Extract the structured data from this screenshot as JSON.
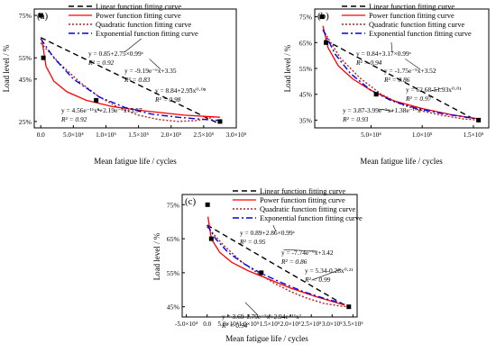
{
  "colors": {
    "linear": "#000000",
    "power": "#ff0000",
    "quadratic": "#b22222",
    "exponential": "#0000ee",
    "points": "#000000",
    "axes": "#000000"
  },
  "chart_data": [
    {
      "panel_label": "(a)",
      "type": "line",
      "xlabel": "Mean fatigue life / cycles",
      "ylabel": "Load level / %",
      "xlim": [
        -10000,
        300000
      ],
      "ylim": [
        22,
        78
      ],
      "xticks": [
        0,
        50000,
        100000,
        150000,
        200000,
        250000,
        300000
      ],
      "xtick_labels": [
        "0.0",
        "5.0×10⁴",
        "1.0×10⁵",
        "1.5×10⁵",
        "2.0×10⁵",
        "2.5×10⁵",
        "3.0×10⁵"
      ],
      "yticks": [
        25,
        45,
        55,
        75
      ],
      "ytick_labels": [
        "25%",
        "45%",
        "55%",
        "75%"
      ],
      "legend_position": "top-right",
      "points": [
        {
          "x": 200,
          "y": 75
        },
        {
          "x": 4000,
          "y": 55
        },
        {
          "x": 85000,
          "y": 35
        },
        {
          "x": 275000,
          "y": 25
        }
      ],
      "series": [
        {
          "name": "Linear function fitting curve",
          "key": "linear",
          "x": [
            0,
            270000
          ],
          "y": [
            64.5,
            24.5
          ]
        },
        {
          "name": "Power function fitting curve",
          "key": "power",
          "x": [
            2000,
            8000,
            20000,
            40000,
            70000,
            110000,
            160000,
            220000,
            275000
          ],
          "y": [
            63,
            51,
            44,
            39,
            35,
            32,
            30,
            28,
            27
          ]
        },
        {
          "name": "Quadratic function fitting curve",
          "key": "quadratic",
          "x": [
            0,
            30000,
            60000,
            90000,
            120000,
            150000,
            180000,
            210000,
            240000,
            265000
          ],
          "y": [
            62,
            52,
            43.5,
            36.5,
            31.5,
            28,
            26,
            25,
            25.5,
            27
          ]
        },
        {
          "name": "Exponential function fitting curve",
          "key": "exponential",
          "x": [
            0,
            20000,
            50000,
            90000,
            130000,
            170000,
            210000,
            250000,
            275000
          ],
          "y": [
            64,
            55,
            45,
            36.5,
            31.5,
            28.5,
            27,
            26,
            25.5
          ]
        }
      ],
      "annotations": [
        {
          "line1": "y = 0.85+2.75×0.99ˣ",
          "line2": "R² = 0.92"
        },
        {
          "line1": "y = -9.19e⁻⁶x+3.35",
          "line2": "R² = 0.83"
        },
        {
          "line1": "y = 8.84+2.93x⁰·⁰⁸",
          "line2": "R² = 0.98"
        },
        {
          "line1": "y = 4.56e⁻¹¹x²+2.19e⁻⁵x+3.57",
          "line2": "R² = 0.92"
        }
      ]
    },
    {
      "panel_label": "(b)",
      "type": "line",
      "xlabel": "Mean fatigue life / cycles",
      "ylabel": "Load level / %",
      "xlim": [
        -5000,
        165000
      ],
      "ylim": [
        32,
        78
      ],
      "xticks": [
        50000,
        100000,
        150000
      ],
      "xtick_labels": [
        "5.0×10⁴",
        "1.0×10⁵",
        "1.5×10⁵"
      ],
      "yticks": [
        35,
        45,
        55,
        65,
        75
      ],
      "ytick_labels": [
        "35%",
        "45%",
        "55%",
        "65%",
        "75%"
      ],
      "legend_position": "top-right",
      "points": [
        {
          "x": 2000,
          "y": 75
        },
        {
          "x": 6000,
          "y": 65
        },
        {
          "x": 55000,
          "y": 45
        },
        {
          "x": 155000,
          "y": 35
        }
      ],
      "series": [
        {
          "name": "Linear function fitting curve",
          "key": "linear",
          "x": [
            5000,
            150000
          ],
          "y": [
            66,
            35.5
          ]
        },
        {
          "name": "Power function fitting curve",
          "key": "power",
          "x": [
            3000,
            8000,
            18000,
            32000,
            50000,
            72000,
            100000,
            130000,
            155000
          ],
          "y": [
            71.5,
            63,
            56,
            51,
            46.5,
            42.5,
            39.5,
            37,
            35.5
          ]
        },
        {
          "name": "Quadratic function fitting curve",
          "key": "quadratic",
          "x": [
            3000,
            20000,
            40000,
            60000,
            80000,
            100000,
            120000,
            140000,
            155000
          ],
          "y": [
            70,
            59,
            51,
            45,
            41,
            38.5,
            36.8,
            35.5,
            35
          ]
        },
        {
          "name": "Exponential function fitting curve",
          "key": "exponential",
          "x": [
            3000,
            15000,
            30000,
            50000,
            70000,
            95000,
            120000,
            145000,
            155000
          ],
          "y": [
            70,
            60.5,
            53,
            46.5,
            42.5,
            39.5,
            37.5,
            36,
            35.5
          ]
        }
      ],
      "annotations": [
        {
          "line1": "y = 0.84+3.17×0.99ˣ",
          "line2": "R² = 0.94"
        },
        {
          "line1": "y = -1.75e⁻⁵x+3.52",
          "line2": "R² = 0.86"
        },
        {
          "line1": "y = 62.68-51.93x⁰·⁰¹",
          "line2": "R² = 0.97"
        },
        {
          "line1": "y = 3.87-3.99e⁻⁵x+1.38e⁻¹⁰x²",
          "line2": "R² = 0.93"
        }
      ]
    },
    {
      "panel_label": "(c)",
      "type": "line",
      "xlabel": "Mean fatigue life / cycles",
      "ylabel": "Load level / %",
      "xlim": [
        -60000,
        360000
      ],
      "ylim": [
        42,
        78
      ],
      "xticks": [
        -50000,
        0,
        50000,
        100000,
        150000,
        200000,
        250000,
        300000,
        350000
      ],
      "xtick_labels": [
        "-5.0×10⁴",
        "0.0",
        "5.0×10⁴",
        "1.0×10⁵",
        "1.5×10⁵",
        "2.0×10⁵",
        "2.5×10⁵",
        "3.0×10⁵",
        "3.5×10⁵"
      ],
      "yticks": [
        45,
        55,
        65,
        75
      ],
      "ytick_labels": [
        "45%",
        "55%",
        "65%",
        "75%"
      ],
      "legend_position": "top-right",
      "points": [
        {
          "x": 1000,
          "y": 75
        },
        {
          "x": 10000,
          "y": 65
        },
        {
          "x": 130000,
          "y": 55
        },
        {
          "x": 340000,
          "y": 45
        }
      ],
      "series": [
        {
          "name": "Linear function fitting curve",
          "key": "linear",
          "x": [
            0,
            330000
          ],
          "y": [
            69,
            45.5
          ]
        },
        {
          "name": "Power function fitting curve",
          "key": "power",
          "x": [
            2000,
            10000,
            30000,
            60000,
            100000,
            150000,
            200000,
            260000,
            330000
          ],
          "y": [
            71.5,
            65,
            61,
            58,
            55.5,
            53,
            50.5,
            48,
            45.5
          ]
        },
        {
          "name": "Quadratic function fitting curve",
          "key": "quadratic",
          "x": [
            0,
            40000,
            80000,
            120000,
            160000,
            200000,
            240000,
            280000,
            320000,
            340000
          ],
          "y": [
            68.5,
            63,
            58.5,
            55,
            52,
            49.5,
            47.5,
            46,
            45.2,
            45
          ]
        },
        {
          "name": "Exponential function fitting curve",
          "key": "exponential",
          "x": [
            0,
            20000,
            50000,
            90000,
            130000,
            180000,
            230000,
            280000,
            330000
          ],
          "y": [
            69,
            65,
            61,
            57.5,
            54.8,
            52,
            49.5,
            47.5,
            45.8
          ]
        }
      ],
      "annotations": [
        {
          "line1": "y = 0.89+2.86×0.99ˣ",
          "line2": "R² = 0.95"
        },
        {
          "line1": "y = -7.74e⁻⁶x+3.42",
          "line2": "R² = 0.86"
        },
        {
          "line1": "y = 5.34-0.28x⁰·²¹",
          "line2": "R² = 0.99"
        },
        {
          "line1": "y = 3.69-1.79e⁻⁵x+2.94e⁻¹¹x²",
          "line2": "R² = 0.94"
        }
      ]
    }
  ]
}
